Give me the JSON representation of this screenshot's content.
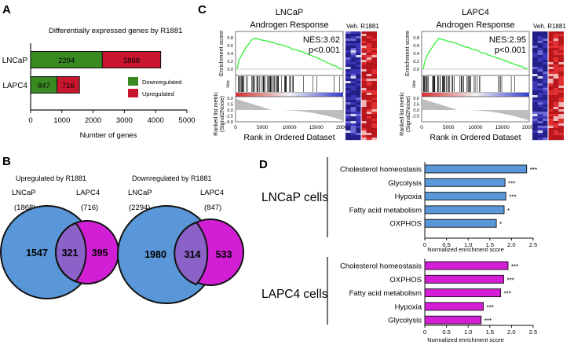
{
  "panels": {
    "A": {
      "letter": "A",
      "title": "Differentially expressed genes by R1881",
      "xlabel": "Number of genes",
      "legend": [
        "Downregulated",
        "Upregulated"
      ]
    },
    "B": {
      "letter": "B",
      "venns": [
        {
          "title": "Upregulated by R1881",
          "left_label": "LNCaP",
          "right_label": "LAPC4",
          "left_count": "(1868)",
          "right_count": "(716)",
          "left_only": "1547",
          "overlap": "321",
          "right_only": "395"
        },
        {
          "title": "Downregulated by R1881",
          "left_label": "LNCaP",
          "right_label": "LAPC4",
          "left_count": "(2294)",
          "right_count": "(847)",
          "left_only": "1980",
          "overlap": "314",
          "right_only": "533"
        }
      ]
    },
    "C": {
      "letter": "C",
      "gsea": [
        {
          "cell": "LNCaP",
          "set": "Androgen Response",
          "nes": "NES:3.62",
          "p": "p<0.001",
          "y_ticks": [
            "0.8",
            "0.6",
            "0.4",
            "0.2",
            "0.0"
          ],
          "y_ticks_bottom": [
            "5.0",
            "2.5",
            "0.0",
            "-2.5",
            "-5.0"
          ]
        },
        {
          "cell": "LAPC4",
          "set": "Androgen Response",
          "nes": "NES:2.95",
          "p": "p<0.001",
          "y_ticks": [
            "0.8",
            "0.6",
            "0.4",
            "0.2",
            "0.0"
          ],
          "y_ticks_bottom": [
            "5.0",
            "2.5",
            "0.0",
            "-2.5"
          ]
        }
      ],
      "es_label": "Enrichment score",
      "hits_label": "Hits",
      "rank_label": "Ranked list metric (Signal2Noise)",
      "xlabel": "Rank in Ordered Dataset",
      "x_ticks": [
        "0",
        "5000",
        "10000",
        "15000",
        "20000"
      ],
      "heat_labels": [
        "Veh.",
        "R1881"
      ]
    },
    "D": {
      "letter": "D",
      "groups": [
        {
          "label": "LNCaP cells",
          "xlabel": "Normalized enrichment score",
          "x_ticks": [
            "0",
            "0.5",
            "1.0",
            "1.5",
            "2.0",
            "2.5"
          ]
        },
        {
          "label": "LAPC4 cells",
          "xlabel": "Normalized enrichment score",
          "x_ticks": [
            "0",
            "0.5",
            "1.0",
            "1.5",
            "2.0",
            "2.5"
          ]
        }
      ]
    }
  },
  "colors": {
    "down": "#3a8a22",
    "up": "#c8162e",
    "blue": "#5a97d9",
    "magenta": "#d21fd6",
    "overlap1": "#8b62c8",
    "line": "#33ee33",
    "heat_red": "#c51b1b",
    "heat_blue": "#2e2a9e"
  },
  "chart_data": [
    {
      "type": "bar",
      "title": "Differentially expressed genes by R1881",
      "categories": [
        "LNCaP",
        "LAPC4"
      ],
      "series": [
        {
          "name": "Downregulated",
          "values": [
            2294,
            847
          ]
        },
        {
          "name": "Upregulated",
          "values": [
            1868,
            716
          ]
        }
      ],
      "stacked": true,
      "xlabel": "Number of genes",
      "x_ticks": [
        0,
        1000,
        2000,
        3000,
        4000,
        5000
      ],
      "xlim": [
        0,
        5000
      ],
      "legend": "right"
    },
    {
      "type": "bar",
      "group": "LNCaP cells",
      "categories": [
        "Cholesterol homeostasis",
        "Glycolysis",
        "Hypoxia",
        "Fatty acid metabolism",
        "OXPHOS"
      ],
      "values": [
        2.35,
        1.85,
        1.87,
        1.83,
        1.65
      ],
      "significance": [
        "***",
        "***",
        "***",
        "*",
        "*"
      ],
      "xlabel": "Normalized enrichment score",
      "xlim": [
        0,
        2.5
      ]
    },
    {
      "type": "bar",
      "group": "LAPC4 cells",
      "categories": [
        "Cholesterol homeostasis",
        "OXPHOS",
        "Fatty acid metabolism",
        "Hypoxia",
        "Glycolysis"
      ],
      "values": [
        1.92,
        1.82,
        1.75,
        1.35,
        1.3
      ],
      "significance": [
        "***",
        "***",
        "***",
        "***",
        "***"
      ],
      "xlabel": "Normalized enrichment score",
      "xlim": [
        0,
        2.5
      ]
    }
  ]
}
